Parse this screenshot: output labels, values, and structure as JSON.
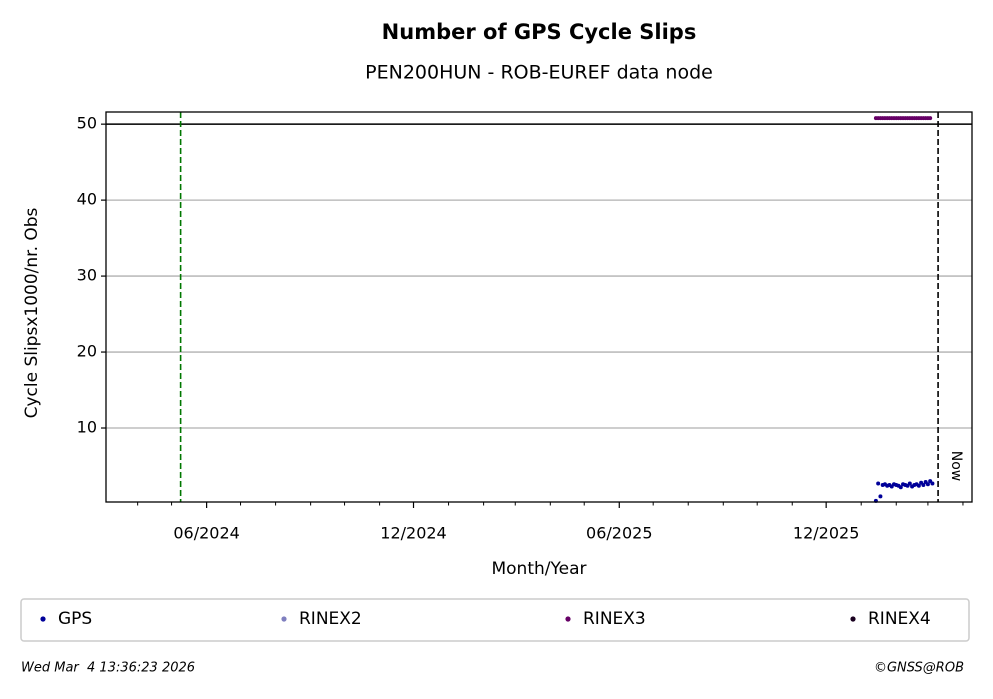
{
  "chart_data": {
    "type": "scatter",
    "title": "Number of GPS Cycle Slips",
    "subtitle": "PEN200HUN - ROB-EUREF data node",
    "x_label": "Month/Year",
    "y_label": "Cycle Slipsx1000/nr. Obs",
    "xlim": [
      "2024-03-04",
      "2026-04-09"
    ],
    "xticks": [
      {
        "value": "2024-06-01",
        "label": "06/2024"
      },
      {
        "value": "2024-12-01",
        "label": "12/2024"
      },
      {
        "value": "2025-06-01",
        "label": "06/2025"
      },
      {
        "value": "2025-12-01",
        "label": "12/2025"
      }
    ],
    "xminor_ticks": [
      "2024-04-01",
      "2024-05-01",
      "2024-07-01",
      "2024-08-01",
      "2024-09-01",
      "2024-10-01",
      "2024-11-01",
      "2025-01-01",
      "2025-02-01",
      "2025-03-01",
      "2025-04-01",
      "2025-05-01",
      "2025-07-01",
      "2025-08-01",
      "2025-09-01",
      "2025-10-01",
      "2025-11-01",
      "2026-01-01",
      "2026-02-01",
      "2026-03-01",
      "2026-04-01"
    ],
    "ylim": [
      0.26,
      51.6
    ],
    "yticks": [
      10,
      20,
      30,
      40,
      50
    ],
    "grid": true,
    "threshold": 50,
    "vline": {
      "x": "2024-05-09",
      "color": "#007700"
    },
    "now": {
      "x": "2026-03-10",
      "label": "Now",
      "color": "#000000"
    },
    "series": [
      {
        "name": "GPS",
        "color": "#000099",
        "x": [
          "2026-01-14",
          "2026-01-16",
          "2026-01-18",
          "2026-01-20",
          "2026-01-22",
          "2026-01-24",
          "2026-01-26",
          "2026-01-28",
          "2026-01-30",
          "2026-02-01",
          "2026-02-03",
          "2026-02-05",
          "2026-02-07",
          "2026-02-09",
          "2026-02-11",
          "2026-02-13",
          "2026-02-15",
          "2026-02-17",
          "2026-02-19",
          "2026-02-21",
          "2026-02-23",
          "2026-02-25",
          "2026-02-27",
          "2026-03-01",
          "2026-03-03",
          "2026-03-05"
        ],
        "values": [
          0.4,
          2.7,
          1.0,
          2.5,
          2.6,
          2.4,
          2.5,
          2.3,
          2.6,
          2.5,
          2.4,
          2.2,
          2.6,
          2.5,
          2.4,
          2.7,
          2.3,
          2.5,
          2.6,
          2.4,
          2.8,
          2.5,
          2.9,
          2.6,
          3.0,
          2.7
        ]
      },
      {
        "name": "RINEX2",
        "color": "#7f7fbf",
        "x": [],
        "values": []
      },
      {
        "name": "RINEX3",
        "color": "#660066",
        "x": [
          "2026-01-14",
          "2026-01-16",
          "2026-01-18",
          "2026-01-20",
          "2026-01-22",
          "2026-01-24",
          "2026-01-26",
          "2026-01-28",
          "2026-01-30",
          "2026-02-01",
          "2026-02-03",
          "2026-02-05",
          "2026-02-07",
          "2026-02-09",
          "2026-02-11",
          "2026-02-13",
          "2026-02-15",
          "2026-02-17",
          "2026-02-19",
          "2026-02-21",
          "2026-02-23",
          "2026-02-25",
          "2026-02-27",
          "2026-03-01",
          "2026-03-03"
        ],
        "values": [
          50.8,
          50.8,
          50.8,
          50.8,
          50.8,
          50.8,
          50.8,
          50.8,
          50.8,
          50.8,
          50.8,
          50.8,
          50.8,
          50.8,
          50.8,
          50.8,
          50.8,
          50.8,
          50.8,
          50.8,
          50.8,
          50.8,
          50.8,
          50.8,
          50.8
        ]
      },
      {
        "name": "RINEX4",
        "color": "#1a0020",
        "x": [],
        "values": []
      }
    ],
    "timestamp": "Wed Mar  4 13:36:23 2026",
    "credit": "©GNSS@ROB"
  }
}
